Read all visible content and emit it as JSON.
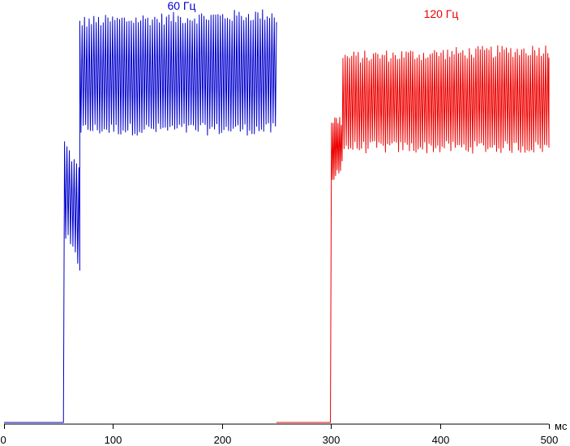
{
  "chart_data": {
    "type": "line",
    "title": "",
    "xlabel": "мс",
    "ylabel": "",
    "xlim": [
      0,
      500
    ],
    "ylim": [
      0,
      1
    ],
    "x_ticks": [
      0,
      100,
      200,
      300,
      400,
      500
    ],
    "x_tick_labels": [
      "0",
      "100",
      "200",
      "300",
      "400",
      "500"
    ],
    "grid": false,
    "legend": "none",
    "series": [
      {
        "name": "60 Гц",
        "color": "#0000cc",
        "x_start": 0,
        "x_end": 250,
        "baseline": 0.0,
        "rise_at": 54.5,
        "segments": [
          {
            "from": 55.5,
            "to": 69.5,
            "period": 2.2,
            "high": 0.665,
            "low": 0.445,
            "high_trend": -0.005,
            "low_trend": -0.0055
          },
          {
            "from": 69.5,
            "to": 250,
            "period": 2.15,
            "high": 0.955,
            "low": 0.7,
            "high_trend": 0.0001,
            "low_trend": 0.0
          }
        ]
      },
      {
        "name": "120 Гц",
        "color": "#ee0000",
        "x_start": 250,
        "x_end": 500,
        "baseline": 0.0,
        "rise_at": 299.5,
        "segments": [
          {
            "from": 300.5,
            "to": 311,
            "period": 1.5,
            "high": 0.72,
            "low": 0.57,
            "high_trend": 0.0,
            "low_trend": 0.006
          },
          {
            "from": 311,
            "to": 500,
            "period": 2.0,
            "high": 0.87,
            "low": 0.657,
            "high_trend": 0.0001,
            "low_trend": 0.0
          }
        ]
      }
    ]
  }
}
